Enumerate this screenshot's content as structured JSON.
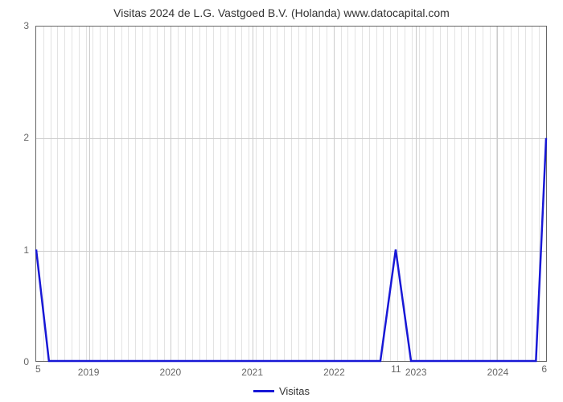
{
  "chart": {
    "type": "line",
    "title": "Visitas 2024 de L.G. Vastgoed B.V. (Holanda) www.datocapital.com",
    "title_fontsize": 14,
    "title_color": "#333333",
    "background_color": "#ffffff",
    "plot_border_color": "#666666",
    "grid_color": "#cccccc",
    "ylim": [
      0,
      3
    ],
    "ytick_step": 1,
    "yticks": [
      0,
      1,
      2,
      3
    ],
    "x_categories": [
      "2019",
      "2020",
      "2021",
      "2022",
      "2023",
      "2024"
    ],
    "x_positions_pct": [
      10.4,
      26.4,
      42.4,
      58.4,
      74.4,
      90.4
    ],
    "corner_bottom_left": "5",
    "corner_bottom_right": "6",
    "x_label_below_2023": "11",
    "series": {
      "name": "Visitas",
      "color": "#1818d6",
      "line_width": 2.5,
      "points": [
        {
          "x_pct": 0.0,
          "y": 1.0
        },
        {
          "x_pct": 2.5,
          "y": 0.0
        },
        {
          "x_pct": 67.5,
          "y": 0.0
        },
        {
          "x_pct": 70.5,
          "y": 1.0
        },
        {
          "x_pct": 73.5,
          "y": 0.0
        },
        {
          "x_pct": 98.0,
          "y": 0.0
        },
        {
          "x_pct": 100.0,
          "y": 2.0
        }
      ]
    },
    "minor_grid_divisions": 12
  }
}
